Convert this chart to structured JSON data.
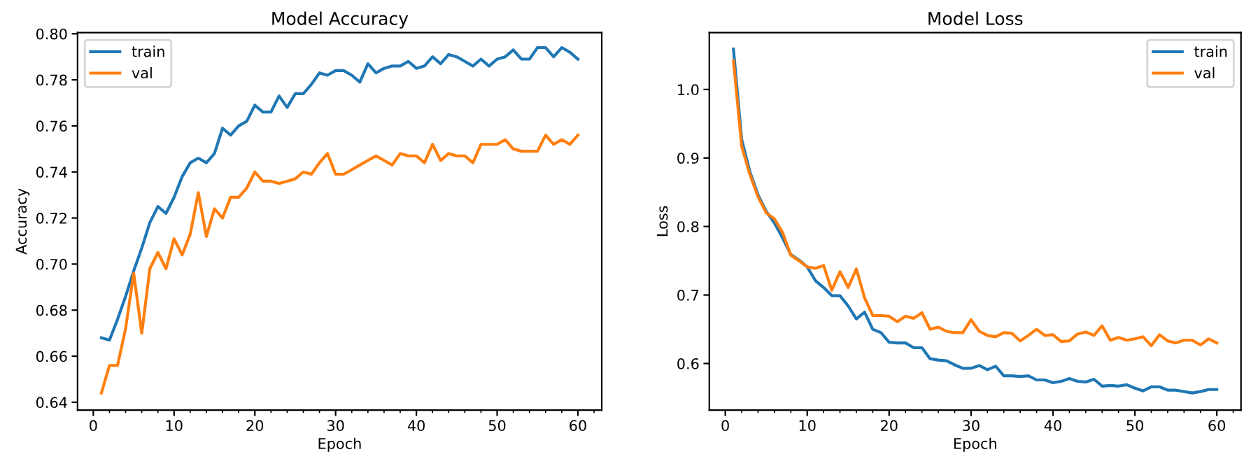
{
  "chart_data": [
    {
      "type": "line",
      "title": "Model Accuracy",
      "xlabel": "Epoch",
      "ylabel": "Accuracy",
      "x": [
        1,
        2,
        3,
        4,
        5,
        6,
        7,
        8,
        9,
        10,
        11,
        12,
        13,
        14,
        15,
        16,
        17,
        18,
        19,
        20,
        21,
        22,
        23,
        24,
        25,
        26,
        27,
        28,
        29,
        30,
        31,
        32,
        33,
        34,
        35,
        36,
        37,
        38,
        39,
        40,
        41,
        42,
        43,
        44,
        45,
        46,
        47,
        48,
        49,
        50,
        51,
        52,
        53,
        54,
        55,
        56,
        57,
        58,
        59,
        60
      ],
      "series": [
        {
          "name": "train",
          "color": "#1f77b4",
          "values": [
            0.668,
            0.667,
            0.676,
            0.686,
            0.697,
            0.707,
            0.718,
            0.725,
            0.722,
            0.729,
            0.738,
            0.744,
            0.746,
            0.744,
            0.748,
            0.759,
            0.756,
            0.76,
            0.762,
            0.769,
            0.766,
            0.766,
            0.773,
            0.768,
            0.774,
            0.774,
            0.778,
            0.783,
            0.782,
            0.784,
            0.784,
            0.782,
            0.779,
            0.787,
            0.783,
            0.785,
            0.786,
            0.786,
            0.788,
            0.785,
            0.786,
            0.79,
            0.787,
            0.791,
            0.79,
            0.788,
            0.786,
            0.789,
            0.786,
            0.789,
            0.79,
            0.793,
            0.789,
            0.789,
            0.794,
            0.794,
            0.79,
            0.794,
            0.792,
            0.789
          ]
        },
        {
          "name": "val",
          "color": "#ff7f0e",
          "values": [
            0.644,
            0.656,
            0.656,
            0.672,
            0.696,
            0.67,
            0.698,
            0.705,
            0.698,
            0.711,
            0.704,
            0.713,
            0.731,
            0.712,
            0.724,
            0.72,
            0.729,
            0.729,
            0.733,
            0.74,
            0.736,
            0.736,
            0.735,
            0.736,
            0.737,
            0.74,
            0.739,
            0.744,
            0.748,
            0.739,
            0.739,
            0.741,
            0.743,
            0.745,
            0.747,
            0.745,
            0.743,
            0.748,
            0.747,
            0.747,
            0.744,
            0.752,
            0.745,
            0.748,
            0.747,
            0.747,
            0.744,
            0.752,
            0.752,
            0.752,
            0.754,
            0.75,
            0.749,
            0.749,
            0.749,
            0.756,
            0.752,
            0.754,
            0.752,
            0.756
          ]
        }
      ],
      "xlim": [
        -1.95,
        62.95
      ],
      "xticks": [
        0,
        10,
        20,
        30,
        40,
        50,
        60
      ],
      "ylim": [
        0.6366,
        0.8005
      ],
      "yticks": [
        {
          "value": 0.64,
          "label": "0.64"
        },
        {
          "value": 0.66,
          "label": "0.66"
        },
        {
          "value": 0.68,
          "label": "0.68"
        },
        {
          "value": 0.7,
          "label": "0.70"
        },
        {
          "value": 0.72,
          "label": "0.72"
        },
        {
          "value": 0.74,
          "label": "0.74"
        },
        {
          "value": 0.76,
          "label": "0.76"
        },
        {
          "value": 0.78,
          "label": "0.78"
        },
        {
          "value": 0.8,
          "label": "0.80"
        }
      ],
      "legend": "top left",
      "grid": false,
      "line_style": "solid",
      "marker": "none"
    },
    {
      "type": "line",
      "title": "Model Loss",
      "xlabel": "Epoch",
      "ylabel": "Loss",
      "x": [
        1,
        2,
        3,
        4,
        5,
        6,
        7,
        8,
        9,
        10,
        11,
        12,
        13,
        14,
        15,
        16,
        17,
        18,
        19,
        20,
        21,
        22,
        23,
        24,
        25,
        26,
        27,
        28,
        29,
        30,
        31,
        32,
        33,
        34,
        35,
        36,
        37,
        38,
        39,
        40,
        41,
        42,
        43,
        44,
        45,
        46,
        47,
        48,
        49,
        50,
        51,
        52,
        53,
        54,
        55,
        56,
        57,
        58,
        59,
        60
      ],
      "series": [
        {
          "name": "train",
          "color": "#1f77b4",
          "values": [
            1.059,
            0.927,
            0.88,
            0.846,
            0.822,
            0.805,
            0.783,
            0.759,
            0.751,
            0.741,
            0.721,
            0.711,
            0.699,
            0.699,
            0.684,
            0.665,
            0.675,
            0.65,
            0.645,
            0.631,
            0.63,
            0.63,
            0.623,
            0.623,
            0.607,
            0.605,
            0.604,
            0.598,
            0.593,
            0.593,
            0.597,
            0.591,
            0.596,
            0.582,
            0.582,
            0.581,
            0.582,
            0.576,
            0.576,
            0.572,
            0.574,
            0.578,
            0.574,
            0.573,
            0.577,
            0.567,
            0.568,
            0.567,
            0.569,
            0.564,
            0.56,
            0.566,
            0.566,
            0.561,
            0.561,
            0.559,
            0.557,
            0.559,
            0.562,
            0.562
          ]
        },
        {
          "name": "val",
          "color": "#ff7f0e",
          "values": [
            1.042,
            0.917,
            0.876,
            0.843,
            0.82,
            0.811,
            0.791,
            0.758,
            0.75,
            0.741,
            0.739,
            0.743,
            0.707,
            0.734,
            0.711,
            0.738,
            0.696,
            0.67,
            0.67,
            0.669,
            0.661,
            0.669,
            0.666,
            0.674,
            0.65,
            0.653,
            0.647,
            0.645,
            0.645,
            0.664,
            0.647,
            0.641,
            0.639,
            0.645,
            0.644,
            0.633,
            0.641,
            0.65,
            0.641,
            0.642,
            0.632,
            0.633,
            0.643,
            0.646,
            0.641,
            0.655,
            0.634,
            0.638,
            0.634,
            0.636,
            0.639,
            0.626,
            0.642,
            0.633,
            0.63,
            0.634,
            0.634,
            0.627,
            0.636,
            0.63
          ]
        }
      ],
      "xlim": [
        -1.95,
        62.95
      ],
      "xticks": [
        0,
        10,
        20,
        30,
        40,
        50,
        60
      ],
      "ylim": [
        0.532,
        1.083
      ],
      "yticks": [
        {
          "value": 0.6,
          "label": "0.6"
        },
        {
          "value": 0.7,
          "label": "0.7"
        },
        {
          "value": 0.8,
          "label": "0.8"
        },
        {
          "value": 0.9,
          "label": "0.9"
        },
        {
          "value": 1.0,
          "label": "1.0"
        }
      ],
      "legend": "top right",
      "grid": false,
      "line_style": "solid",
      "marker": "none"
    }
  ]
}
